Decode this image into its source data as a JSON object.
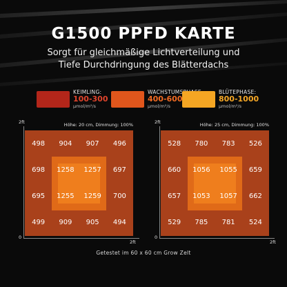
{
  "header": {
    "title": "G1500 PPFD KARTE",
    "subtitle_line1": "Sorgt für gleichmäßige Lichtverteilung und",
    "subtitle_line2": "Tiefe Durchdringung des Blätterdachs"
  },
  "legend": [
    {
      "name": "KEIMLING:",
      "range": "100-300",
      "unit": "μmol/m²/s",
      "color": "#b3261a"
    },
    {
      "name": "WACHSTUMSPHASE:",
      "range": "400-600",
      "unit": "μmol/m²/s",
      "color": "#e0561c"
    },
    {
      "name": "BLÜTEPHASE:",
      "range": "800-1000",
      "unit": "μmol/m²/s",
      "color": "#f5a623"
    }
  ],
  "panels": [
    {
      "info": "Höhe: 20 cm, Dimmung: 100%",
      "y_max": "2ft",
      "origin": "0",
      "x_max": "2ft",
      "values": [
        "498",
        "904",
        "907",
        "496",
        "698",
        "1258",
        "1257",
        "697",
        "695",
        "1255",
        "1259",
        "700",
        "499",
        "909",
        "905",
        "494"
      ]
    },
    {
      "info": "Höhe: 25 cm, Dimmung: 100%",
      "y_max": "2ft",
      "origin": "0",
      "x_max": "2ft",
      "values": [
        "528",
        "780",
        "783",
        "526",
        "660",
        "1056",
        "1055",
        "659",
        "657",
        "1053",
        "1057",
        "662",
        "529",
        "785",
        "781",
        "524"
      ]
    }
  ],
  "footer": "Getestet im 60 x 60 cm Grow Zelt"
}
